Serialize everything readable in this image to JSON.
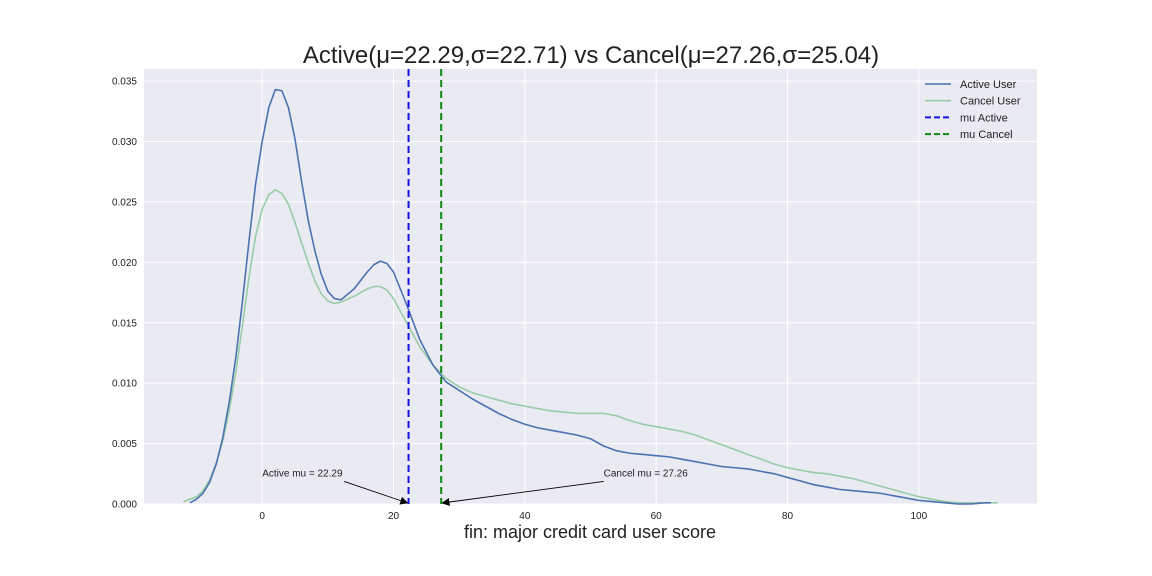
{
  "chart_data": {
    "type": "line",
    "title": "Active(μ=22.29,σ=22.71) vs Cancel(μ=27.26,σ=25.04)",
    "xlabel": "fin: major credit card user score",
    "ylabel": "",
    "xlim": [
      -18,
      118
    ],
    "ylim": [
      0,
      0.036
    ],
    "xticks": [
      0,
      20,
      40,
      60,
      80,
      100
    ],
    "yticks": [
      "0.000",
      "0.005",
      "0.010",
      "0.015",
      "0.020",
      "0.025",
      "0.030",
      "0.035"
    ],
    "grid": true,
    "legend_position": "top-right",
    "colors": {
      "active": "#4c72b0",
      "cancel": "#98cca7",
      "mu_active": "#1414e6",
      "mu_cancel": "#118811",
      "background": "#eaeaf2",
      "grid": "#ffffff"
    },
    "series": [
      {
        "name": "Active User",
        "x": [
          -11,
          -10,
          -9,
          -8,
          -7,
          -6,
          -5,
          -4,
          -3,
          -2,
          -1,
          0,
          1,
          2,
          3,
          4,
          5,
          6,
          7,
          8,
          9,
          10,
          11,
          12,
          14,
          16,
          17,
          18,
          19,
          20,
          22,
          24,
          26,
          28,
          30,
          32,
          34,
          36,
          38,
          40,
          42,
          44,
          46,
          48,
          50,
          52,
          54,
          56,
          58,
          60,
          62,
          64,
          66,
          68,
          70,
          72,
          74,
          76,
          78,
          80,
          82,
          84,
          86,
          88,
          90,
          92,
          94,
          96,
          98,
          100,
          102,
          104,
          106,
          108,
          110,
          111
        ],
        "values": [
          0.0001,
          0.0004,
          0.0009,
          0.0018,
          0.0033,
          0.0055,
          0.0085,
          0.0122,
          0.0168,
          0.0218,
          0.0265,
          0.03,
          0.0328,
          0.0343,
          0.0342,
          0.0328,
          0.0302,
          0.0267,
          0.0235,
          0.021,
          0.019,
          0.0176,
          0.017,
          0.0169,
          0.0178,
          0.0192,
          0.0198,
          0.0201,
          0.0199,
          0.0192,
          0.0165,
          0.0136,
          0.0115,
          0.0101,
          0.0094,
          0.0087,
          0.0081,
          0.0075,
          0.007,
          0.0066,
          0.0063,
          0.0061,
          0.0059,
          0.0057,
          0.0054,
          0.0048,
          0.0044,
          0.0042,
          0.0041,
          0.004,
          0.0039,
          0.0037,
          0.0035,
          0.0033,
          0.0031,
          0.003,
          0.0029,
          0.0027,
          0.0025,
          0.0022,
          0.0019,
          0.0016,
          0.0014,
          0.0012,
          0.0011,
          0.001,
          0.0009,
          0.0007,
          0.0005,
          0.0003,
          0.0002,
          0.0001,
          0.0,
          0.0,
          0.0001,
          0.0001
        ]
      },
      {
        "name": "Cancel User",
        "x": [
          -12,
          -10,
          -9,
          -8,
          -7,
          -6,
          -5,
          -4,
          -3,
          -2,
          -1,
          0,
          1,
          2,
          3,
          4,
          5,
          6,
          7,
          8,
          9,
          10,
          11,
          12,
          14,
          16,
          17,
          18,
          19,
          20,
          22,
          24,
          26,
          28,
          30,
          32,
          34,
          36,
          38,
          40,
          42,
          44,
          46,
          48,
          50,
          52,
          54,
          56,
          58,
          60,
          62,
          64,
          66,
          68,
          70,
          72,
          74,
          76,
          78,
          80,
          82,
          84,
          86,
          88,
          90,
          92,
          94,
          96,
          98,
          100,
          102,
          104,
          106,
          108,
          110,
          112
        ],
        "values": [
          0.0002,
          0.0006,
          0.0011,
          0.002,
          0.0034,
          0.0052,
          0.0078,
          0.011,
          0.0148,
          0.0188,
          0.0222,
          0.0244,
          0.0256,
          0.026,
          0.0257,
          0.0248,
          0.0233,
          0.0216,
          0.02,
          0.0185,
          0.0174,
          0.0168,
          0.0166,
          0.0167,
          0.0172,
          0.0178,
          0.018,
          0.018,
          0.0177,
          0.017,
          0.015,
          0.013,
          0.0115,
          0.0104,
          0.0097,
          0.0092,
          0.0089,
          0.0086,
          0.0083,
          0.0081,
          0.0079,
          0.0077,
          0.0076,
          0.0075,
          0.0075,
          0.0075,
          0.0073,
          0.0069,
          0.0066,
          0.0064,
          0.0062,
          0.006,
          0.0057,
          0.0053,
          0.0049,
          0.0045,
          0.0041,
          0.0037,
          0.0033,
          0.003,
          0.0028,
          0.0026,
          0.0025,
          0.0023,
          0.0021,
          0.0018,
          0.0015,
          0.0012,
          0.0009,
          0.0006,
          0.0004,
          0.0002,
          0.0001,
          0.0001,
          0.0001,
          0.0001
        ]
      }
    ],
    "mean_lines": [
      {
        "name": "mu Active",
        "x": 22.29
      },
      {
        "name": "mu Cancel",
        "x": 27.26
      }
    ],
    "annotations": [
      {
        "text": "Active mu = 22.29",
        "text_x": 0,
        "text_y": 0.0022,
        "target_x": 22.29,
        "target_y": 0.0
      },
      {
        "text": "Cancel mu = 27.26",
        "text_x": 52,
        "text_y": 0.0022,
        "target_x": 27.26,
        "target_y": 0.0
      }
    ]
  }
}
